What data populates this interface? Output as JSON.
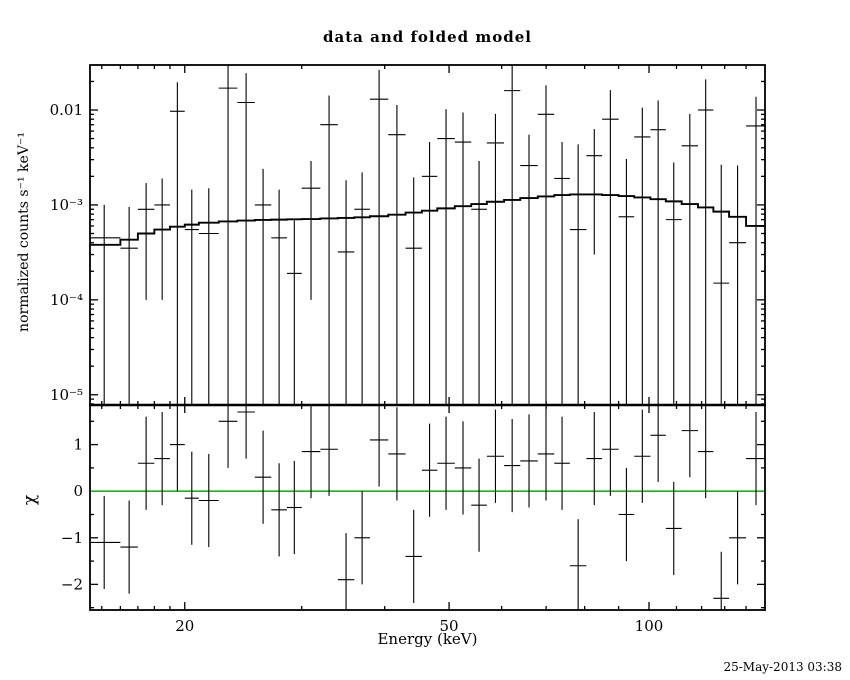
{
  "title": "data and folded model",
  "timestamp": "25-May-2013 03:38",
  "chart_data": {
    "type": "scatter",
    "title": "data and folded model",
    "xlabel": "Energy (keV)",
    "x_scale": "log",
    "xlim": [
      14.4,
      149.5
    ],
    "x_major_ticks": [
      20,
      50,
      100
    ],
    "x_major_tick_labels": [
      "20",
      "50",
      "100"
    ],
    "x_minor_ticks": [
      15,
      16,
      17,
      18,
      19,
      30,
      40,
      60,
      70,
      80,
      90,
      110,
      120,
      130,
      140
    ],
    "bin_edges_keV": [
      14.3,
      16,
      17,
      18,
      19,
      20,
      21,
      22.5,
      24,
      25.5,
      27,
      28.5,
      30,
      32,
      34,
      36,
      38,
      40.5,
      43,
      45.5,
      48,
      51,
      54,
      57,
      60.5,
      64,
      68,
      72,
      76,
      80.5,
      85,
      90,
      95,
      100.5,
      106,
      112,
      118.5,
      125,
      132,
      140,
      150
    ],
    "panels": [
      {
        "name": "spectrum",
        "ylabel": "normalized counts s⁻¹ keV⁻¹",
        "y_scale": "log",
        "ylim": [
          7.8e-06,
          0.0298
        ],
        "y_major_ticks": [
          0.01,
          0.001,
          0.0001,
          1e-05
        ],
        "y_tick_labels": [
          "0.01",
          "10⁻³",
          "10⁻⁴",
          "10⁻⁵"
        ]
      },
      {
        "name": "residuals",
        "ylabel": "χ",
        "y_scale": "linear",
        "ylim": [
          -2.55,
          1.85
        ],
        "y_major_ticks": [
          -2,
          -1,
          0,
          1
        ],
        "y_tick_labels": [
          "−2",
          "−1",
          "0",
          "1"
        ],
        "zero_line_color": "#00c800"
      }
    ],
    "series": [
      {
        "name": "data",
        "color": "#000000",
        "values": [
          0.00045,
          0.00035,
          0.0009,
          0.001,
          0.0097,
          0.00055,
          0.0005,
          0.017,
          0.012,
          0.001,
          0.00045,
          0.00019,
          0.0015,
          0.007,
          0.00032,
          0.0009,
          0.013,
          0.0055,
          0.00035,
          0.002,
          0.005,
          0.0046,
          0.0009,
          0.0045,
          0.016,
          0.0026,
          0.009,
          0.0019,
          0.00055,
          0.0033,
          0.008,
          0.00075,
          0.0052,
          0.0062,
          0.0007,
          0.0042,
          0.01,
          0.00015,
          0.0004,
          0.0068
        ],
        "errors": [
          0.00055,
          0.0006,
          0.0008,
          0.0009,
          0.0099,
          0.0009,
          0.001,
          0.0175,
          0.0125,
          0.0014,
          0.001,
          0.0005,
          0.0014,
          0.0072,
          0.0015,
          0.0013,
          0.0135,
          0.0058,
          0.0016,
          0.0026,
          0.0052,
          0.0048,
          0.002,
          0.0046,
          0.0165,
          0.0029,
          0.0092,
          0.0027,
          0.0038,
          0.003,
          0.0082,
          0.0023,
          0.0054,
          0.0064,
          0.0021,
          0.0049,
          0.011,
          0.0025,
          0.0022,
          0.007
        ]
      },
      {
        "name": "folded model",
        "color": "#000000",
        "values": [
          0.00038,
          0.00043,
          0.0005,
          0.00055,
          0.00059,
          0.00062,
          0.00065,
          0.00067,
          0.000685,
          0.000695,
          0.0007,
          0.000705,
          0.00071,
          0.00072,
          0.00073,
          0.00074,
          0.00076,
          0.00079,
          0.00083,
          0.00087,
          0.00092,
          0.00097,
          0.00102,
          0.00108,
          0.00113,
          0.00118,
          0.00123,
          0.00127,
          0.00129,
          0.00129,
          0.00127,
          0.00124,
          0.0012,
          0.00115,
          0.00109,
          0.00102,
          0.00094,
          0.00085,
          0.00075,
          0.0006
        ]
      },
      {
        "name": "chi",
        "color": "#000000",
        "values": [
          -1.1,
          -1.2,
          0.6,
          0.7,
          1.0,
          -0.15,
          -0.2,
          1.5,
          1.7,
          0.3,
          -0.4,
          -0.35,
          0.85,
          0.9,
          -1.9,
          -1.0,
          1.1,
          0.8,
          -1.4,
          0.45,
          0.6,
          0.5,
          -0.3,
          0.75,
          0.55,
          0.65,
          0.8,
          0.6,
          -1.6,
          0.7,
          0.9,
          -0.5,
          0.75,
          1.2,
          -0.8,
          1.3,
          0.85,
          -2.3,
          -1.0,
          0.7
        ],
        "error": 1.0
      }
    ]
  }
}
